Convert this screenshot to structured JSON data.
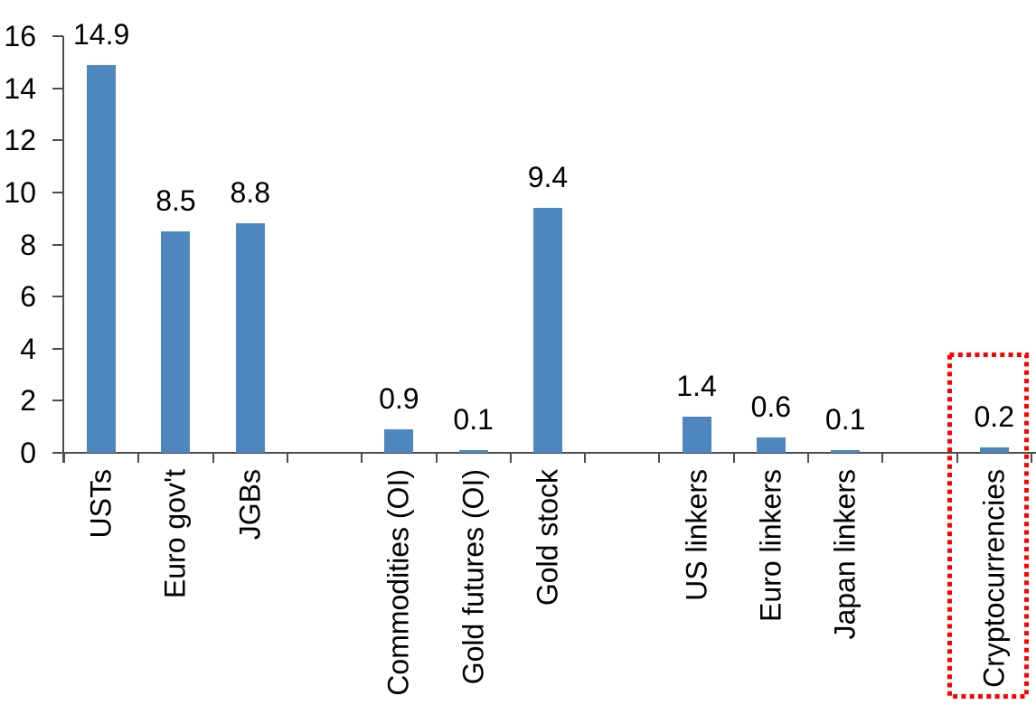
{
  "chart_data": {
    "type": "bar",
    "title": "",
    "xlabel": "",
    "ylabel": "",
    "categories": [
      "USTs",
      "Euro gov't",
      "JGBs",
      "Commodities (OI)",
      "Gold futures (OI)",
      "Gold stock",
      "US linkers",
      "Euro linkers",
      "Japan linkers",
      "Cryptocurrencies"
    ],
    "values": [
      14.9,
      8.5,
      8.8,
      0.9,
      0.1,
      9.4,
      1.4,
      0.6,
      0.1,
      0.2
    ],
    "data_labels": [
      "14.9",
      "8.5",
      "8.8",
      "0.9",
      "0.1",
      "9.4",
      "1.4",
      "0.6",
      "0.1",
      "0.2"
    ],
    "slot_index": [
      0,
      1,
      2,
      4,
      5,
      6,
      8,
      9,
      10,
      12
    ],
    "n_slots": 13,
    "ylim": [
      0,
      16
    ],
    "yticks": [
      0,
      2,
      4,
      6,
      8,
      10,
      12,
      14,
      16
    ],
    "grid": false,
    "legend": null,
    "bar_color": "#4E87BF",
    "axis_color": "#4D4D4D",
    "text_color": "#000000",
    "background": "#FFFFFF",
    "highlight": {
      "category": "Cryptocurrencies",
      "shape": "dotted-rectangle",
      "color": "#FF0000"
    }
  }
}
